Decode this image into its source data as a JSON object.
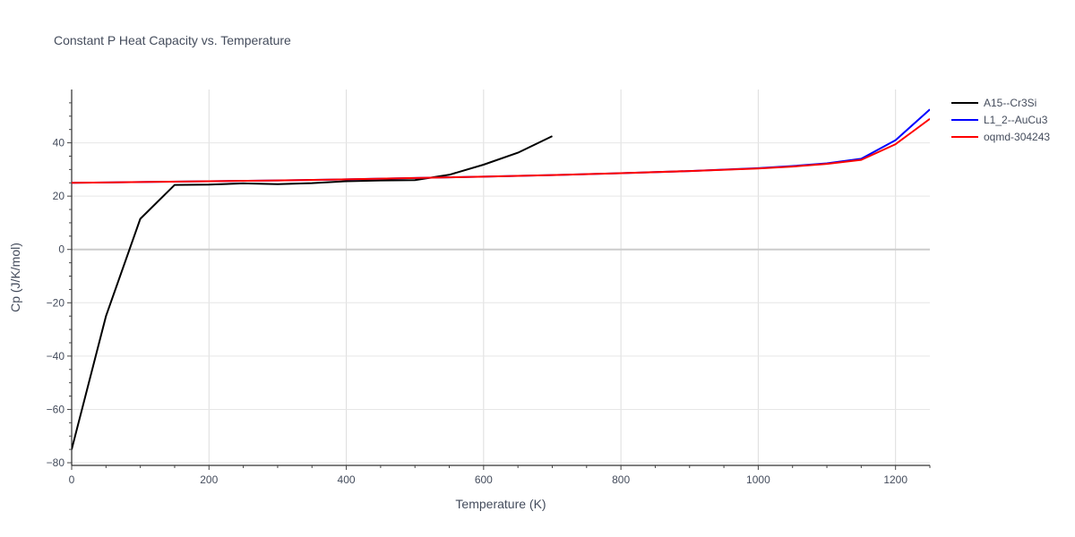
{
  "chart_data": {
    "type": "line",
    "title": "Constant P Heat Capacity vs. Temperature",
    "xlabel": "Temperature (K)",
    "ylabel": "Cp (J/K/mol)",
    "xlim": [
      0,
      1250
    ],
    "ylim": [
      -81,
      60
    ],
    "x_ticks": [
      0,
      200,
      400,
      600,
      800,
      1000,
      1200
    ],
    "y_ticks": [
      -80,
      -60,
      -40,
      -20,
      0,
      20,
      40
    ],
    "x_tick_labels": [
      "0",
      "200",
      "400",
      "600",
      "800",
      "1000",
      "1200"
    ],
    "y_tick_labels": [
      "−80",
      "−60",
      "−40",
      "−20",
      "0",
      "20",
      "40"
    ],
    "grid": true,
    "legend_position": "right",
    "series": [
      {
        "name": "A15--Cr3Si",
        "color": "#000000",
        "x": [
          0,
          50,
          100,
          150,
          200,
          250,
          300,
          350,
          400,
          450,
          500,
          550,
          600,
          650,
          700
        ],
        "y": [
          -75,
          -25,
          11.5,
          24.2,
          24.3,
          24.8,
          24.5,
          24.9,
          25.6,
          25.9,
          26,
          28,
          31.8,
          36.3,
          42.5
        ]
      },
      {
        "name": "L1_2--AuCu3",
        "color": "#0000ff",
        "x": [
          0,
          100,
          200,
          300,
          400,
          500,
          600,
          700,
          800,
          900,
          1000,
          1050,
          1100,
          1150,
          1200,
          1250
        ],
        "y": [
          25,
          25.3,
          25.6,
          25.9,
          26.3,
          26.8,
          27.3,
          27.9,
          28.6,
          29.4,
          30.5,
          31.3,
          32.3,
          34,
          41,
          52.5
        ]
      },
      {
        "name": "oqmd-304243",
        "color": "#ff0000",
        "x": [
          0,
          100,
          200,
          300,
          400,
          500,
          600,
          700,
          800,
          900,
          1000,
          1050,
          1100,
          1150,
          1200,
          1250
        ],
        "y": [
          25,
          25.3,
          25.6,
          25.9,
          26.3,
          26.8,
          27.3,
          27.9,
          28.6,
          29.4,
          30.4,
          31.1,
          32.1,
          33.6,
          39.5,
          49
        ]
      }
    ]
  }
}
